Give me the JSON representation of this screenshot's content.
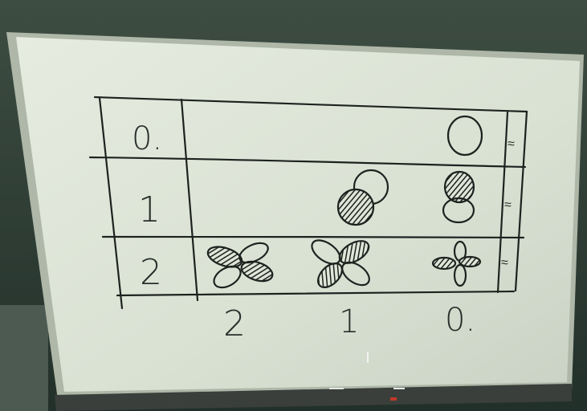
{
  "board": {
    "row_labels": [
      "0.",
      "1",
      "2"
    ],
    "column_labels": [
      "2",
      "1",
      "0."
    ],
    "right_marks": [
      "≈",
      "≈",
      "≈"
    ]
  },
  "colors": {
    "wall": "#2b3a30",
    "board_surface": "#dfe6d8",
    "board_frame": "#b9c1b3",
    "ink": "#1e221f",
    "tray": "#3a3f3b"
  }
}
